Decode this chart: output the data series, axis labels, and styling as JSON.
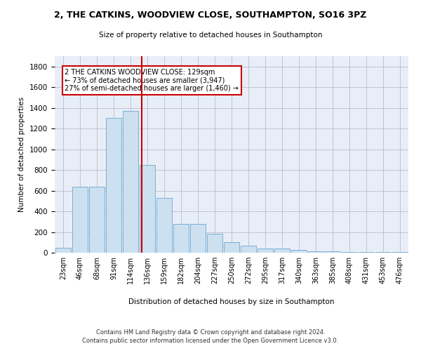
{
  "title1": "2, THE CATKINS, WOODVIEW CLOSE, SOUTHAMPTON, SO16 3PZ",
  "title2": "Size of property relative to detached houses in Southampton",
  "xlabel": "Distribution of detached houses by size in Southampton",
  "ylabel": "Number of detached properties",
  "bar_color": "#cce0f0",
  "bar_edge_color": "#7aafd4",
  "grid_color": "#bbbbcc",
  "bg_color": "#e8eef8",
  "vline_x": 4,
  "vline_color": "#cc0000",
  "categories": [
    "23sqm",
    "46sqm",
    "68sqm",
    "91sqm",
    "114sqm",
    "136sqm",
    "159sqm",
    "182sqm",
    "204sqm",
    "227sqm",
    "250sqm",
    "272sqm",
    "295sqm",
    "317sqm",
    "340sqm",
    "363sqm",
    "385sqm",
    "408sqm",
    "431sqm",
    "453sqm",
    "476sqm"
  ],
  "values": [
    50,
    640,
    640,
    1305,
    1370,
    848,
    530,
    275,
    275,
    185,
    105,
    65,
    38,
    38,
    28,
    15,
    15,
    10,
    10,
    10,
    10
  ],
  "ylim": [
    0,
    1900
  ],
  "yticks": [
    0,
    200,
    400,
    600,
    800,
    1000,
    1200,
    1400,
    1600,
    1800
  ],
  "annotation_text": "2 THE CATKINS WOODVIEW CLOSE: 129sqm\n← 73% of detached houses are smaller (3,947)\n27% of semi-detached houses are larger (1,460) →",
  "annotation_box_color": "#ffffff",
  "annotation_box_edge": "#cc0000",
  "footer1": "Contains HM Land Registry data © Crown copyright and database right 2024.",
  "footer2": "Contains public sector information licensed under the Open Government Licence v3.0."
}
